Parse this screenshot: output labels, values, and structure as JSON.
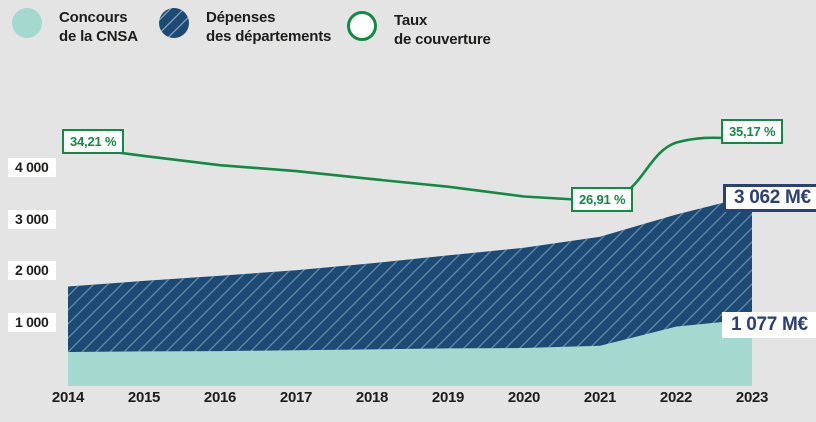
{
  "colors": {
    "background": "#e5e4e4",
    "teal": "#a5d8cf",
    "navy": "#1c4a74",
    "green": "#128944",
    "hatch": "#7e97b3",
    "label_navy": "#2b4077",
    "text": "#1d1d1b"
  },
  "legend": {
    "items": [
      {
        "id": "concours",
        "line1": "Concours",
        "line2": "de la CNSA"
      },
      {
        "id": "depenses",
        "line1": "Dépenses",
        "line2": "des départements"
      },
      {
        "id": "taux",
        "line1": "Taux",
        "line2": "de couverture"
      }
    ]
  },
  "chart_data": {
    "type": "area",
    "x": [
      "2014",
      "2015",
      "2016",
      "2017",
      "2018",
      "2019",
      "2020",
      "2021",
      "2022",
      "2023"
    ],
    "series": [
      {
        "id": "concours",
        "name": "Concours de la CNSA",
        "unit": "M€",
        "style": "area-teal",
        "values": [
          547,
          556,
          561,
          575,
          588,
          605,
          611,
          646,
          955,
          1077
        ]
      },
      {
        "id": "depenses",
        "name": "Dépenses des départements",
        "unit": "M€",
        "style": "area-navy-hatched",
        "values": [
          1599,
          1690,
          1772,
          1862,
          1972,
          2100,
          2222,
          2400,
          2755,
          3062
        ]
      },
      {
        "id": "taux",
        "name": "Taux de couverture",
        "unit": "%",
        "style": "line-green",
        "values": [
          34.21,
          32.9,
          31.66,
          30.88,
          29.82,
          28.81,
          27.5,
          26.91,
          34.66,
          35.17
        ]
      }
    ],
    "y_ticks": [
      "4 000",
      "3 000",
      "2 000",
      "1 000"
    ],
    "ylim": [
      0,
      4400
    ],
    "grid": false,
    "legend_position": "top",
    "annotations": {
      "taux_2014": "34,21 %",
      "taux_2021": "26,91 %",
      "taux_2023": "35,17 %",
      "depenses_2023": "3 062 M€",
      "concours_2023": "1 077 M€"
    }
  }
}
